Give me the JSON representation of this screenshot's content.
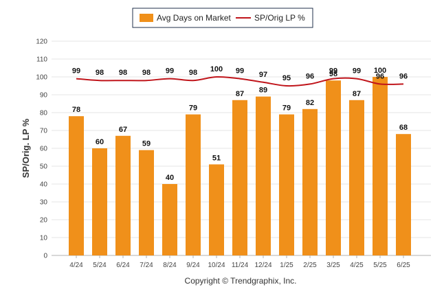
{
  "legend": {
    "bar_label": "Avg Days on Market",
    "line_label": "SP/Orig LP %"
  },
  "footer": {
    "copyright": "Copyright © Trendgraphix, Inc."
  },
  "colors": {
    "bar": "#f0901a",
    "line": "#c0141a",
    "grid": "#e6e6e6",
    "axis": "#b0b0b0"
  },
  "chart_data": {
    "type": "bar",
    "title": "",
    "xlabel": "",
    "ylabel": "SP/Orig. LP %",
    "ylim": [
      0,
      120
    ],
    "yticks": [
      0,
      10,
      20,
      30,
      40,
      50,
      60,
      70,
      80,
      90,
      100,
      110,
      120
    ],
    "grid": true,
    "legend_position": "top-center",
    "categories": [
      "4/24",
      "5/24",
      "6/24",
      "7/24",
      "8/24",
      "9/24",
      "10/24",
      "11/24",
      "12/24",
      "1/25",
      "2/25",
      "3/25",
      "4/25",
      "5/25",
      "6/25"
    ],
    "series": [
      {
        "name": "Avg Days on Market",
        "type": "bar",
        "values": [
          78,
          60,
          67,
          59,
          40,
          79,
          51,
          87,
          89,
          79,
          82,
          98,
          87,
          100,
          68
        ]
      },
      {
        "name": "SP/Orig LP %",
        "type": "line",
        "values": [
          99,
          98,
          98,
          98,
          99,
          98,
          100,
          99,
          97,
          95,
          96,
          99,
          99,
          96,
          96
        ]
      }
    ]
  }
}
